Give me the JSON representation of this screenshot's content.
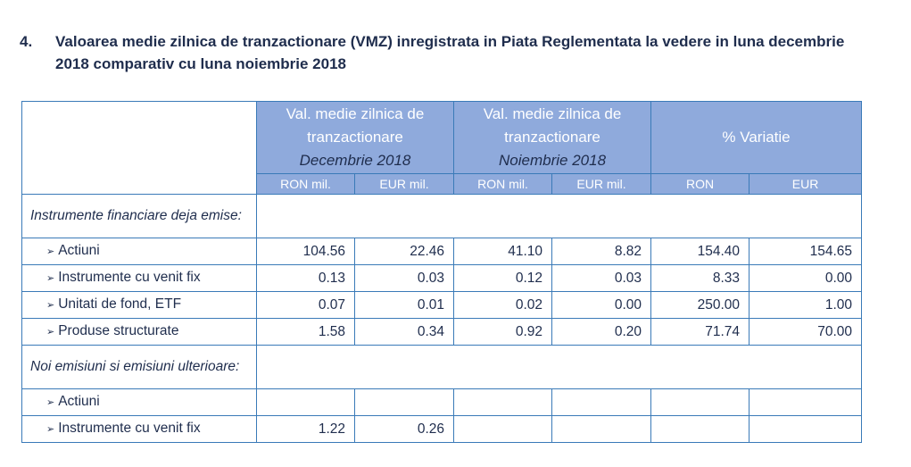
{
  "heading": {
    "number": "4.",
    "text": "Valoarea medie zilnica de tranzactionare (VMZ) inregistrata in Piata Reglementata la vedere in luna decembrie 2018 comparativ cu luna noiembrie 2018"
  },
  "table": {
    "groups": [
      {
        "title": "Val. medie zilnica de tranzactionare",
        "month": "Decembrie 2018"
      },
      {
        "title": "Val. medie zilnica de tranzactionare",
        "month": "Noiembrie 2018"
      },
      {
        "title": "% Variatie",
        "month": ""
      }
    ],
    "subheaders": [
      "RON mil.",
      "EUR mil.",
      "RON mil.",
      "EUR mil.",
      "RON",
      "EUR"
    ],
    "sections": [
      {
        "label": "Instrumente financiare  deja emise:",
        "rows": [
          {
            "label": "Actiuni",
            "values": [
              "104.56",
              "22.46",
              "41.10",
              "8.82",
              "154.40",
              "154.65"
            ]
          },
          {
            "label": "Instrumente cu venit fix",
            "values": [
              "0.13",
              "0.03",
              "0.12",
              "0.03",
              "8.33",
              "0.00"
            ]
          },
          {
            "label": "Unitati de fond, ETF",
            "values": [
              "0.07",
              "0.01",
              "0.02",
              "0.00",
              "250.00",
              "1.00"
            ]
          },
          {
            "label": "Produse structurate",
            "values": [
              "1.58",
              "0.34",
              "0.92",
              "0.20",
              "71.74",
              "70.00"
            ]
          }
        ]
      },
      {
        "label": "Noi emisiuni si emisiuni ulterioare:",
        "rows": [
          {
            "label": "Actiuni",
            "values": [
              "",
              "",
              "",
              "",
              "",
              ""
            ]
          },
          {
            "label": "Instrumente cu venit fix",
            "values": [
              "1.22",
              "0.26",
              "",
              "",
              "",
              ""
            ]
          }
        ]
      }
    ]
  }
}
